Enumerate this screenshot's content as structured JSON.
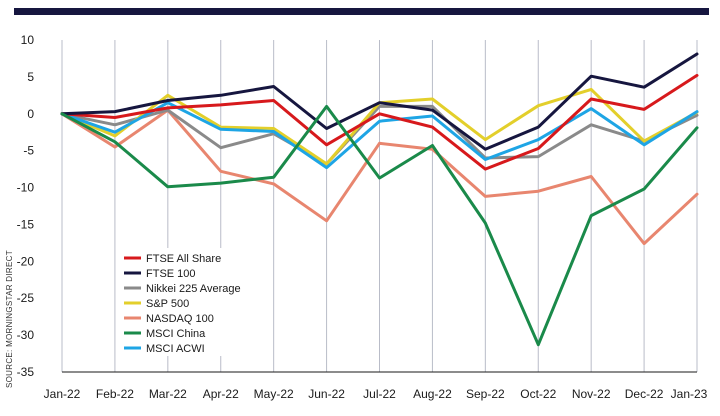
{
  "chart_data": {
    "type": "line",
    "categories": [
      "Jan-22",
      "Feb-22",
      "Mar-22",
      "Apr-22",
      "May-22",
      "Jun-22",
      "Jul-22",
      "Aug-22",
      "Sep-22",
      "Oct-22",
      "Nov-22",
      "Dec-22",
      "Jan-23"
    ],
    "ylim": [
      -35,
      10
    ],
    "yticks": [
      10,
      5,
      0,
      -5,
      -10,
      -15,
      -20,
      -25,
      -30,
      -35
    ],
    "grid": "vertical",
    "legend_position": "lower-left",
    "source": "SOURCE: MORNINGSTAR DIRECT",
    "series": [
      {
        "name": "FTSE All Share",
        "color": "#d7191c",
        "values": [
          0,
          -0.5,
          0.8,
          1.2,
          1.8,
          -4.2,
          0.0,
          -1.8,
          -7.5,
          -4.7,
          2.0,
          0.6,
          5.2
        ]
      },
      {
        "name": "FTSE 100",
        "color": "#16163f",
        "values": [
          0,
          0.3,
          1.8,
          2.5,
          3.7,
          -2.0,
          1.5,
          0.5,
          -4.8,
          -1.8,
          5.1,
          3.6,
          8.1
        ]
      },
      {
        "name": "Nikkei 225 Average",
        "color": "#8a8a8a",
        "values": [
          0,
          -1.5,
          0.5,
          -4.6,
          -2.7,
          -6.8,
          1.0,
          1.0,
          -6.0,
          -5.8,
          -1.5,
          -3.7,
          -0.2
        ]
      },
      {
        "name": "S&P 500",
        "color": "#e3cf2b",
        "values": [
          0,
          -3.0,
          2.5,
          -1.8,
          -2.0,
          -6.8,
          1.5,
          2.0,
          -3.5,
          1.1,
          3.3,
          -3.7,
          0.2
        ]
      },
      {
        "name": "NASDAQ 100",
        "color": "#e8866f",
        "values": [
          0,
          -4.5,
          0.5,
          -7.8,
          -9.5,
          -14.5,
          -4.0,
          -4.8,
          -11.2,
          -10.5,
          -8.5,
          -17.6,
          -10.9
        ]
      },
      {
        "name": "MSCI China",
        "color": "#1a8a4a",
        "values": [
          0,
          -3.8,
          -9.9,
          -9.4,
          -8.6,
          1.0,
          -8.7,
          -4.3,
          -14.8,
          -31.3,
          -13.8,
          -10.2,
          -1.9
        ]
      },
      {
        "name": "MSCI ACWI",
        "color": "#1ea5e5",
        "values": [
          0,
          -2.5,
          1.5,
          -2.1,
          -2.4,
          -7.3,
          -1.0,
          -0.3,
          -6.2,
          -3.5,
          0.7,
          -4.2,
          0.3
        ]
      }
    ]
  }
}
